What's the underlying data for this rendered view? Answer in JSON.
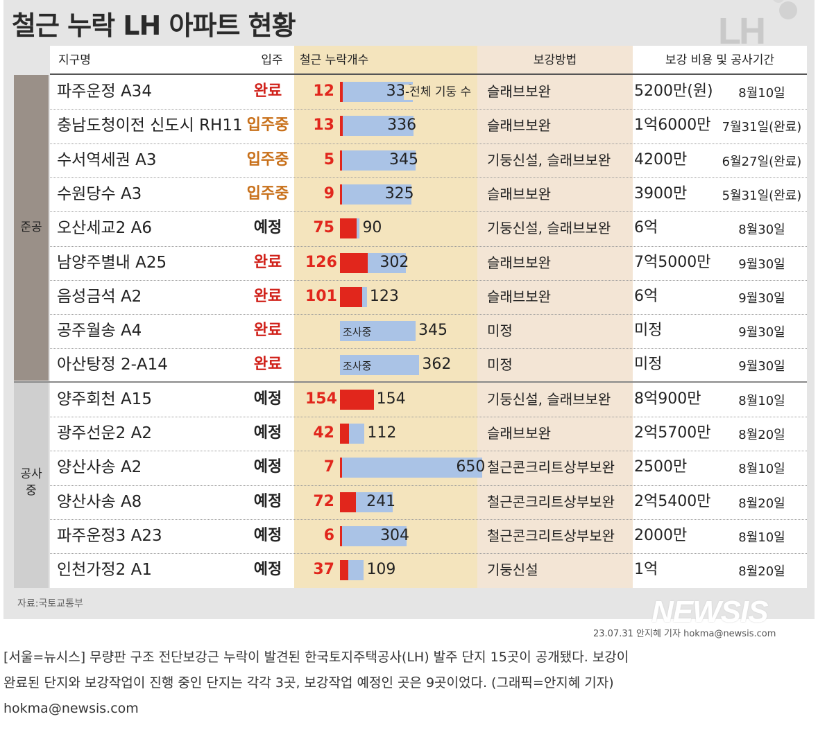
{
  "title": "철근 누락 LH 아파트 현황",
  "logo": "LH",
  "chart_data": {
    "type": "table",
    "columns": {
      "district": "지구명",
      "status": "입주",
      "rebar": "철근 누락개수",
      "method": "보강방법",
      "cost_period": "보강 비용 및 공사기간"
    },
    "total_columns_note": "전체 기둥 수",
    "groups": [
      {
        "label": "준공",
        "rows": 9
      },
      {
        "label": "공사\n중",
        "rows": 6
      }
    ],
    "rows": [
      {
        "district": "파주운정 A34",
        "status": "완료",
        "leaked": "12",
        "total": 331,
        "method": "슬래브보완",
        "cost": "5200만(원)",
        "period": "8월10일"
      },
      {
        "district": "충남도청이전 신도시 RH11",
        "status": "입주중",
        "leaked": "13",
        "total": 336,
        "method": "슬래브보완",
        "cost": "1억6000만",
        "period": "7월31일(완료)"
      },
      {
        "district": "수서역세권 A3",
        "status": "입주중",
        "leaked": "5",
        "total": 345,
        "method": "기둥신설, 슬래브보완",
        "cost": "4200만",
        "period": "6월27일(완료)"
      },
      {
        "district": "수원당수 A3",
        "status": "입주중",
        "leaked": "9",
        "total": 325,
        "method": "슬래브보완",
        "cost": "3900만",
        "period": "5월31일(완료)"
      },
      {
        "district": "오산세교2 A6",
        "status": "예정",
        "leaked": "75",
        "total": 90,
        "method": "기둥신설, 슬래브보완",
        "cost": "6억",
        "period": "8월30일"
      },
      {
        "district": "남양주별내 A25",
        "status": "완료",
        "leaked": "126",
        "total": 302,
        "method": "슬래브보완",
        "cost": "7억5000만",
        "period": "9월30일"
      },
      {
        "district": "음성금석 A2",
        "status": "완료",
        "leaked": "101",
        "total": 123,
        "method": "슬래브보완",
        "cost": "6억",
        "period": "9월30일"
      },
      {
        "district": "공주월송 A4",
        "status": "완료",
        "leaked": "조사중",
        "total": 345,
        "method": "미정",
        "cost": "미정",
        "period": "9월30일"
      },
      {
        "district": "아산탕정 2-A14",
        "status": "완료",
        "leaked": "조사중",
        "total": 362,
        "method": "미정",
        "cost": "미정",
        "period": "9월30일"
      },
      {
        "district": "양주회천 A15",
        "status": "예정",
        "leaked": "154",
        "total": 154,
        "method": "기둥신설, 슬래브보완",
        "cost": "8억900만",
        "period": "8월10일"
      },
      {
        "district": "광주선운2 A2",
        "status": "예정",
        "leaked": "42",
        "total": 112,
        "method": "슬래브보완",
        "cost": "2억5700만",
        "period": "8월20일"
      },
      {
        "district": "양산사송 A2",
        "status": "예정",
        "leaked": "7",
        "total": 650,
        "method": "철근콘크리트상부보완",
        "cost": "2500만",
        "period": "8월10일"
      },
      {
        "district": "양산사송 A8",
        "status": "예정",
        "leaked": "72",
        "total": 241,
        "method": "철근콘크리트상부보완",
        "cost": "2억5400만",
        "period": "8월20일"
      },
      {
        "district": "파주운정3 A23",
        "status": "예정",
        "leaked": "6",
        "total": 304,
        "method": "철근콘크리트상부보완",
        "cost": "2000만",
        "period": "8월10일"
      },
      {
        "district": "인천가정2 A1",
        "status": "예정",
        "leaked": "37",
        "total": 109,
        "method": "기둥신설",
        "cost": "1억",
        "period": "8월20일"
      }
    ]
  },
  "colors": {
    "leak_bar": "#e1261c",
    "total_bar": "#aac3e6",
    "status_done": "#d0211a",
    "status_living": "#c8701a",
    "status_planned": "#222222",
    "rebar_column_bg": "#f4e4bd",
    "method_column_bg": "#f3e5d5",
    "group_bg": "#9a9088"
  },
  "source": "자료:국토교통부",
  "agency_logo": "NEWSIS",
  "credit": "23.07.31 안지혜 기자 hokma@newsis.com",
  "caption": {
    "line1": "[서울=뉴시스] 무량판 구조 전단보강근 누락이 발견된 한국토지주택공사(LH) 발주 단지 15곳이 공개됐다. 보강이",
    "line2": "완료된 단지와 보강작업이 진행 중인 단지는 각각 3곳, 보강작업 예정인 곳은 9곳이었다. (그래픽=안지혜 기자)",
    "line3": "hokma@newsis.com"
  }
}
